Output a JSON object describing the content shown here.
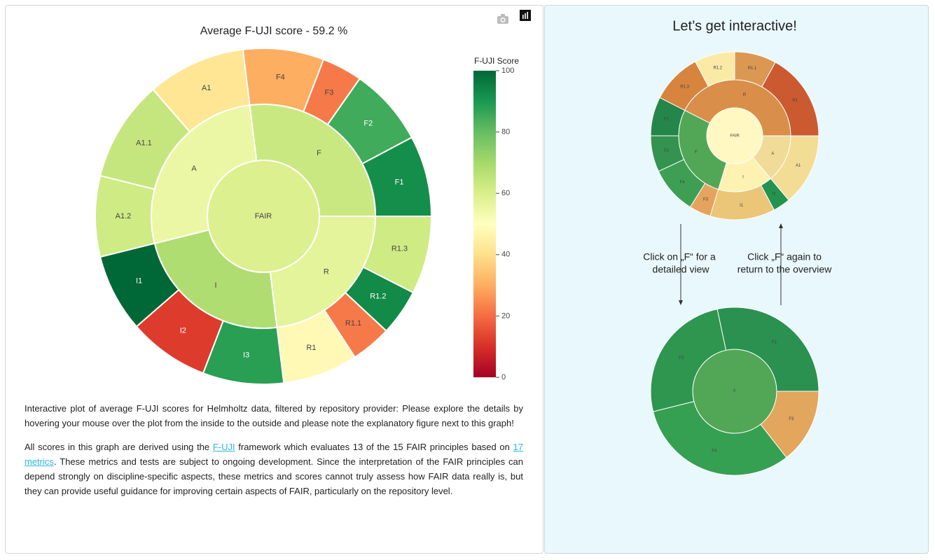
{
  "chart_data": {
    "type": "sunburst",
    "title": "Average F-UJI score - 59.2 %",
    "colorscale": [
      "#a50026",
      "#d73027",
      "#f46d43",
      "#fdae61",
      "#fee08b",
      "#ffffbf",
      "#d9ef8b",
      "#a6d96a",
      "#66bd63",
      "#1a9850",
      "#006837"
    ],
    "colorbar": {
      "title": "F-UJI Score",
      "lim": [
        0,
        100
      ],
      "ticks": [
        0,
        20,
        40,
        60,
        80,
        100
      ]
    },
    "root": {
      "label": "FAIR",
      "value": 59.2
    },
    "nodes": [
      {
        "label": "F",
        "value": 63,
        "size": 97,
        "children": [
          {
            "label": "F4",
            "value": 30,
            "size": 28
          },
          {
            "label": "F3",
            "value": 22,
            "size": 14
          },
          {
            "label": "F2",
            "value": 85,
            "size": 27
          },
          {
            "label": "F1",
            "value": 92,
            "size": 28
          }
        ]
      },
      {
        "label": "R",
        "value": 57,
        "size": 83,
        "children": [
          {
            "label": "R1.3",
            "value": 62,
            "size": 27
          },
          {
            "label": "R1.2",
            "value": 93,
            "size": 16
          },
          {
            "label": "R1.1",
            "value": 22,
            "size": 14
          },
          {
            "label": "R1",
            "value": 48,
            "size": 26
          }
        ]
      },
      {
        "label": "I",
        "value": 68,
        "size": 83,
        "children": [
          {
            "label": "I3",
            "value": 88,
            "size": 28
          },
          {
            "label": "I2",
            "value": 12,
            "size": 28
          },
          {
            "label": "I1",
            "value": 100,
            "size": 27
          }
        ]
      },
      {
        "label": "A",
        "value": 55,
        "size": 97,
        "children": [
          {
            "label": "A1.2",
            "value": 62,
            "size": 28
          },
          {
            "label": "A1.1",
            "value": 64,
            "size": 35
          },
          {
            "label": "A1",
            "value": 42,
            "size": 34
          }
        ]
      }
    ]
  },
  "description": {
    "paragraph1": "Interactive plot of average F-UJI scores for Helmholtz data, filtered by repository provider: Please explore the details by hovering your mouse over the plot from the inside to the outside and please note the explanatory figure next to this graph!",
    "paragraph2": [
      "All scores in this graph are derived using the ",
      "F-UJI",
      " framework which evaluates 13 of the 15 FAIR principles based on ",
      "17 metrics",
      ". These metrics and tests are subject to ongoing development. Since the interpretation of the FAIR principles can depend strongly on discipline-specific aspects, these metrics and scores cannot truly assess how FAIR data really is, but they can provide useful guidance for improving certain aspects of FAIR, particularly on the repository level."
    ]
  },
  "explainer": {
    "title": "Let’s get interactive!",
    "left_note": [
      "Click on „F“ for a",
      "detailed view"
    ],
    "right_note": [
      "Click „F“ again to",
      "return to the overview"
    ],
    "top_labels": [
      "FAIR",
      "R",
      "A",
      "I",
      "F",
      "R1.3",
      "R1.2",
      "R1.1",
      "R1",
      "A1",
      "I3",
      "I1",
      "F3",
      "F4",
      "F2",
      "F1"
    ],
    "bottom_labels": [
      "F",
      "F1",
      "F3",
      "F4",
      "F2"
    ]
  }
}
